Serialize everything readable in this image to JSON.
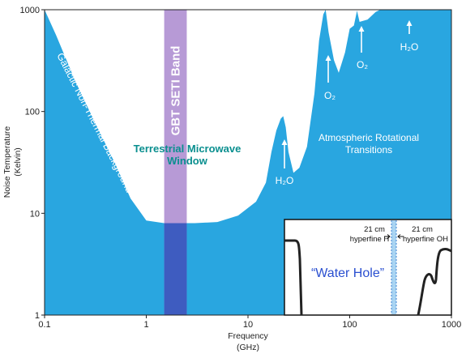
{
  "chart_data": {
    "type": "area",
    "xscale": "log",
    "yscale": "log",
    "xlim": [
      0.1,
      1000
    ],
    "ylim": [
      1,
      1000
    ],
    "xlabel_lines": [
      "Frequency",
      "(GHz)"
    ],
    "ylabel_lines": [
      "Noise Temperature",
      "(Kelvin)"
    ],
    "xticks": [
      {
        "value": 0.1,
        "label": "0.1"
      },
      {
        "value": 1,
        "label": "1"
      },
      {
        "value": 10,
        "label": "10"
      },
      {
        "value": 100,
        "label": "100"
      },
      {
        "value": 1000,
        "label": "1000"
      }
    ],
    "yticks": [
      {
        "value": 1,
        "label": "1"
      },
      {
        "value": 10,
        "label": "10"
      },
      {
        "value": 100,
        "label": "100"
      },
      {
        "value": 1000,
        "label": "1000"
      }
    ],
    "noise_floor": [
      [
        0.1,
        1000
      ],
      [
        0.13,
        560
      ],
      [
        0.2,
        200
      ],
      [
        0.3,
        85
      ],
      [
        0.5,
        30
      ],
      [
        0.7,
        14
      ],
      [
        1.0,
        8.5
      ],
      [
        1.5,
        8
      ],
      [
        3,
        8
      ],
      [
        5,
        8.2
      ],
      [
        8,
        9.5
      ],
      [
        12,
        13
      ],
      [
        15,
        20
      ],
      [
        17,
        40
      ],
      [
        19,
        65
      ],
      [
        21,
        85
      ],
      [
        22.2,
        90
      ],
      [
        23.5,
        70
      ],
      [
        25,
        40
      ],
      [
        28,
        25
      ],
      [
        32,
        28
      ],
      [
        38,
        45
      ],
      [
        45,
        150
      ],
      [
        50,
        500
      ],
      [
        55,
        900
      ],
      [
        58,
        1000
      ],
      [
        62,
        600
      ],
      [
        70,
        320
      ],
      [
        78,
        240
      ],
      [
        90,
        380
      ],
      [
        100,
        650
      ],
      [
        110,
        700
      ],
      [
        118,
        980
      ],
      [
        125,
        760
      ],
      [
        150,
        800
      ],
      [
        180,
        950
      ],
      [
        200,
        1000
      ]
    ],
    "band": {
      "label": "GBT SETI Band",
      "range": [
        1.5,
        2.5
      ],
      "color": "#b79ad6"
    },
    "fill_color": "#29a6e0",
    "annotations": {
      "galactic": "Galactic Non-Thermal Background",
      "window_line1": "Terrestrial Microwave",
      "window_line2": "Window",
      "atm_line1": "Atmospheric Rotational",
      "atm_line2": "Transitions",
      "h2o": "H₂O",
      "o2": "O₂"
    },
    "inset": {
      "title": "“Water Hole”",
      "label_h_line1": "21 cm",
      "label_h_line2": "hyperfine H",
      "label_oh_line1": "21 cm",
      "label_oh_line2": "hyperfine OH",
      "band_color": "#a9d4f2"
    }
  }
}
